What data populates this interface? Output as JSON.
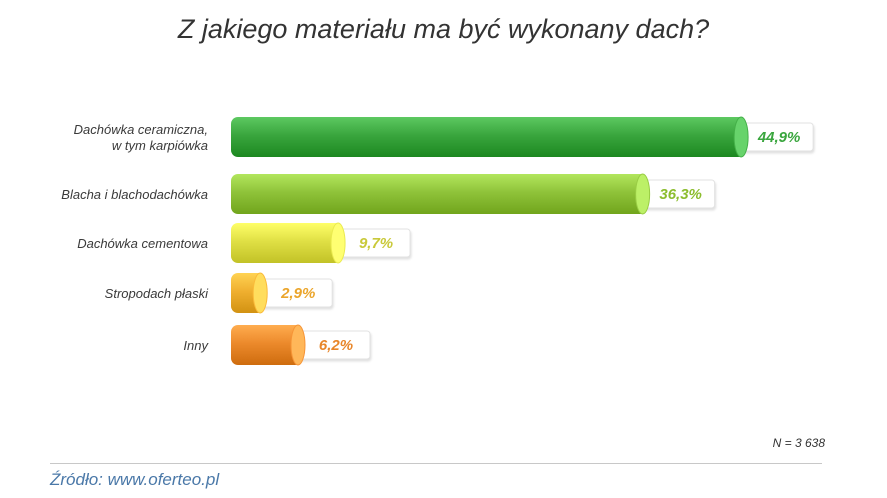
{
  "chart_data": {
    "type": "bar",
    "orientation": "horizontal",
    "title": "Z jakiego materiału ma być wykonany dach?",
    "categories": [
      [
        "Dachówka ceramiczna,",
        "w tym karpiówka"
      ],
      [
        "Blacha i blachodachówka"
      ],
      [
        "Dachówka cementowa"
      ],
      [
        "Stropodach płaski"
      ],
      [
        "Inny"
      ]
    ],
    "values": [
      44.9,
      36.3,
      9.7,
      2.9,
      6.2
    ],
    "value_labels": [
      "44,9%",
      "36,3%",
      "9,7%",
      "2,9%",
      "6,2%"
    ],
    "colors": [
      "#3aa63e",
      "#8fc33a",
      "#e0e045",
      "#f0b030",
      "#ec8a2c"
    ],
    "label_colors": [
      "#3aa63e",
      "#8cbd2e",
      "#c9c93a",
      "#eba52b",
      "#e8862a"
    ],
    "grid": false,
    "legend": "none"
  },
  "note": "N = 3 638",
  "source": "Źródło: www.oferteo.pl"
}
